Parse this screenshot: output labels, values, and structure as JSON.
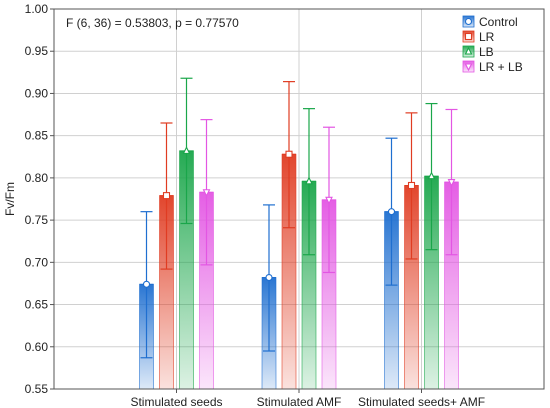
{
  "chart_data": {
    "type": "bar",
    "annotation": "F (6, 36) = 0.53803, p = 0.77570",
    "xlabel": "",
    "ylabel": "Fv/Fm",
    "ylim": [
      0.55,
      1.0
    ],
    "yticks": [
      "0.55",
      "0.60",
      "0.65",
      "0.70",
      "0.75",
      "0.80",
      "0.85",
      "0.90",
      "0.95",
      "1.00"
    ],
    "categories": [
      "Stimulated seeds",
      "Stimulated AMF",
      "Stimulated seeds+ AMF"
    ],
    "legend_position": "top-right",
    "grid": true,
    "error_bars": "vertical whiskers",
    "series": [
      {
        "name": "Control",
        "color": "#1f6fd0",
        "marker": "circle",
        "values": [
          0.674,
          0.682,
          0.76
        ],
        "lower": [
          0.587,
          0.595,
          0.673
        ],
        "upper": [
          0.76,
          0.768,
          0.847
        ]
      },
      {
        "name": "LR",
        "color": "#e03c22",
        "marker": "square",
        "values": [
          0.779,
          0.828,
          0.791
        ],
        "lower": [
          0.692,
          0.741,
          0.704
        ],
        "upper": [
          0.865,
          0.914,
          0.877
        ]
      },
      {
        "name": "LB",
        "color": "#1aa64a",
        "marker": "triangle-up",
        "values": [
          0.832,
          0.796,
          0.802
        ],
        "lower": [
          0.746,
          0.709,
          0.715
        ],
        "upper": [
          0.918,
          0.882,
          0.888
        ]
      },
      {
        "name": "LR + LB",
        "color": "#e356e3",
        "marker": "triangle-down",
        "values": [
          0.783,
          0.774,
          0.795
        ],
        "lower": [
          0.697,
          0.688,
          0.709
        ],
        "upper": [
          0.869,
          0.86,
          0.881
        ]
      }
    ]
  }
}
